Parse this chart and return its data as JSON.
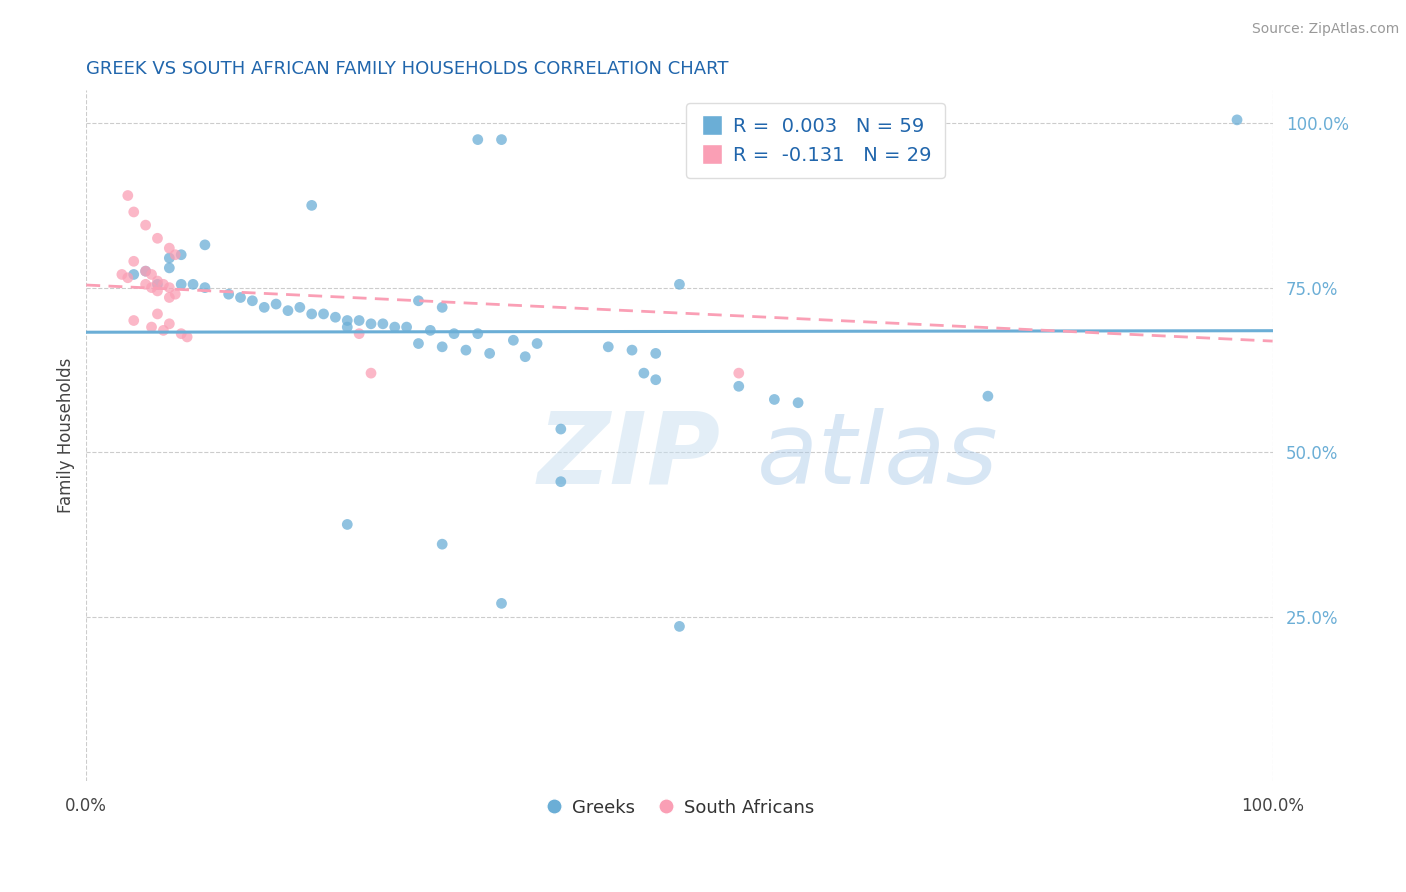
{
  "title": "GREEK VS SOUTH AFRICAN FAMILY HOUSEHOLDS CORRELATION CHART",
  "source": "Source: ZipAtlas.com",
  "ylabel": "Family Households",
  "xlim": [
    0.0,
    1.0
  ],
  "ylim": [
    0.0,
    1.05
  ],
  "greek_color": "#6baed6",
  "sa_color": "#fa9fb5",
  "greek_R": 0.003,
  "greek_N": 59,
  "sa_R": -0.131,
  "sa_N": 29,
  "title_color": "#2166ac",
  "source_color": "#999999",
  "legend_text_color": "#2166ac",
  "watermark": "ZIPatlas",
  "greek_x": [
    0.33,
    0.35,
    0.19,
    0.1,
    0.08,
    0.07,
    0.07,
    0.05,
    0.04,
    0.06,
    0.08,
    0.09,
    0.1,
    0.12,
    0.13,
    0.14,
    0.16,
    0.18,
    0.2,
    0.22,
    0.24,
    0.26,
    0.28,
    0.3,
    0.22,
    0.15,
    0.17,
    0.19,
    0.21,
    0.23,
    0.25,
    0.27,
    0.29,
    0.31,
    0.33,
    0.28,
    0.3,
    0.32,
    0.34,
    0.37,
    0.36,
    0.38,
    0.44,
    0.46,
    0.48,
    0.5,
    0.47,
    0.48,
    0.55,
    0.4,
    0.58,
    0.6,
    0.76,
    0.22,
    0.35,
    0.97,
    0.4,
    0.3,
    0.5
  ],
  "greek_y": [
    0.975,
    0.975,
    0.875,
    0.815,
    0.8,
    0.795,
    0.78,
    0.775,
    0.77,
    0.755,
    0.755,
    0.755,
    0.75,
    0.74,
    0.735,
    0.73,
    0.725,
    0.72,
    0.71,
    0.7,
    0.695,
    0.69,
    0.73,
    0.72,
    0.69,
    0.72,
    0.715,
    0.71,
    0.705,
    0.7,
    0.695,
    0.69,
    0.685,
    0.68,
    0.68,
    0.665,
    0.66,
    0.655,
    0.65,
    0.645,
    0.67,
    0.665,
    0.66,
    0.655,
    0.65,
    0.755,
    0.62,
    0.61,
    0.6,
    0.535,
    0.58,
    0.575,
    0.585,
    0.39,
    0.27,
    1.005,
    0.455,
    0.36,
    0.235
  ],
  "sa_x": [
    0.035,
    0.04,
    0.05,
    0.06,
    0.07,
    0.075,
    0.04,
    0.05,
    0.055,
    0.06,
    0.065,
    0.07,
    0.075,
    0.03,
    0.035,
    0.05,
    0.055,
    0.06,
    0.07,
    0.06,
    0.04,
    0.07,
    0.055,
    0.065,
    0.08,
    0.085,
    0.23,
    0.24,
    0.55
  ],
  "sa_y": [
    0.89,
    0.865,
    0.845,
    0.825,
    0.81,
    0.8,
    0.79,
    0.775,
    0.77,
    0.76,
    0.755,
    0.75,
    0.74,
    0.77,
    0.765,
    0.755,
    0.75,
    0.745,
    0.735,
    0.71,
    0.7,
    0.695,
    0.69,
    0.685,
    0.68,
    0.675,
    0.68,
    0.62,
    0.62
  ]
}
